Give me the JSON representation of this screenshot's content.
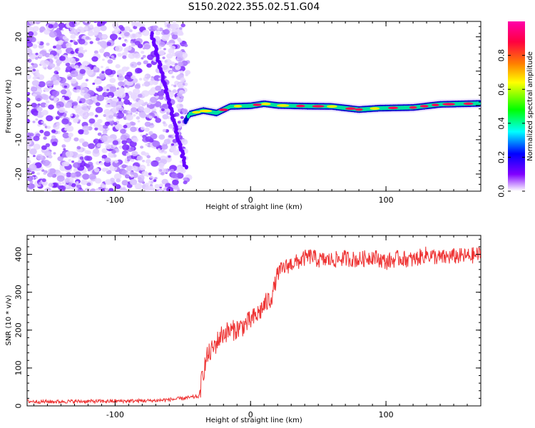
{
  "title": "S150.2022.355.02.51.G04",
  "chart_data": [
    {
      "type": "heatmap",
      "xlabel": "Height of straight line (km)",
      "ylabel": "Frequency (Hz)",
      "xlim": [
        -165,
        170
      ],
      "ylim": [
        -25,
        24.5
      ],
      "x_ticks": [
        -100,
        0,
        100
      ],
      "y_ticks": [
        -20,
        -10,
        0,
        10,
        20
      ],
      "colorbar": {
        "label": "Normalized spectral amplitude",
        "range": [
          0,
          1
        ],
        "ticks": [
          0.0,
          0.2,
          0.4,
          0.6,
          0.8
        ],
        "colormap": [
          "#ff00aa",
          "#ff0000",
          "#ffff00",
          "#00ff00",
          "#00ffff",
          "#0000ff",
          "#8000ff",
          "#ffffff"
        ]
      },
      "features": {
        "noise_region_x": [
          -165,
          -48
        ],
        "sweep_line": {
          "from": {
            "x": -73,
            "y": 21
          },
          "to": {
            "x": -48,
            "y": -18
          },
          "color": "#6600ff"
        },
        "carrier_track": [
          {
            "x": -48,
            "y": -4.5
          },
          {
            "x": -45,
            "y": -2.5
          },
          {
            "x": -35,
            "y": -1.5
          },
          {
            "x": -25,
            "y": -2.2
          },
          {
            "x": -15,
            "y": -0.3
          },
          {
            "x": 0,
            "y": -0.1
          },
          {
            "x": 10,
            "y": 0.5
          },
          {
            "x": 20,
            "y": 0.0
          },
          {
            "x": 40,
            "y": -0.2
          },
          {
            "x": 60,
            "y": -0.3
          },
          {
            "x": 80,
            "y": -1.2
          },
          {
            "x": 95,
            "y": -0.8
          },
          {
            "x": 120,
            "y": -0.6
          },
          {
            "x": 140,
            "y": 0.3
          },
          {
            "x": 170,
            "y": 0.6
          }
        ],
        "carrier_color_low": "#0000cc",
        "carrier_color_mid": "#00e0a0",
        "carrier_color_high": "#ff0055"
      }
    },
    {
      "type": "line",
      "xlabel": "Height of straight line (km)",
      "ylabel": "SNR (10 * v/v)",
      "xlim": [
        -165,
        170
      ],
      "ylim": [
        0,
        450
      ],
      "x_ticks": [
        -100,
        0,
        100
      ],
      "y_ticks": [
        0,
        100,
        200,
        300,
        400
      ],
      "color": "#ee3333",
      "series": [
        {
          "x": [
            -165,
            -150,
            -130,
            -110,
            -90,
            -70,
            -55,
            -45,
            -38,
            -35,
            -32,
            -28,
            -22,
            -18,
            -12,
            -6,
            0,
            5,
            10,
            15,
            18,
            20,
            25,
            30,
            35,
            40,
            45,
            50,
            60,
            70,
            80,
            90,
            100,
            110,
            120,
            130,
            140,
            150,
            160,
            170
          ],
          "values": [
            12,
            11,
            12,
            12,
            13,
            14,
            18,
            22,
            25,
            90,
            130,
            150,
            185,
            195,
            200,
            210,
            225,
            240,
            265,
            285,
            320,
            350,
            365,
            375,
            380,
            390,
            395,
            385,
            385,
            390,
            385,
            395,
            380,
            390,
            385,
            400,
            390,
            395,
            395,
            400
          ]
        }
      ]
    }
  ]
}
